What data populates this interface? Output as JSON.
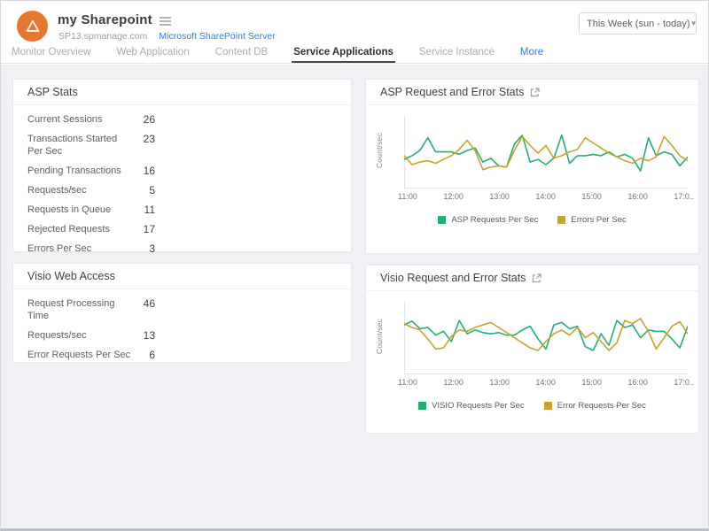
{
  "header": {
    "title": "my Sharepoint",
    "host": "SP13.spmanage.com",
    "type_link": "Microsoft SharePoint Server",
    "period_selector": "This Week (sun - today)"
  },
  "tabs": {
    "items": [
      {
        "label": "Monitor Overview"
      },
      {
        "label": "Web Application"
      },
      {
        "label": "Content DB"
      },
      {
        "label": "Service Applications"
      },
      {
        "label": "Service Instance"
      },
      {
        "label": "More"
      }
    ],
    "active": "Service Applications"
  },
  "panels": {
    "asp_stats": {
      "title": "ASP Stats",
      "rows": [
        {
          "label": "Current Sessions",
          "value": "26"
        },
        {
          "label": "Transactions Started Per Sec",
          "value": "23"
        },
        {
          "label": "Pending Transactions",
          "value": "16"
        },
        {
          "label": "Requests/sec",
          "value": "5"
        },
        {
          "label": "Requests in Queue",
          "value": "11"
        },
        {
          "label": "Rejected Requests",
          "value": "17"
        },
        {
          "label": "Errors Per Sec",
          "value": "3"
        }
      ]
    },
    "visio_web_access": {
      "title": "Visio Web Access",
      "rows": [
        {
          "label": "Request Processing Time",
          "value": "46"
        },
        {
          "label": "Requests/sec",
          "value": "13"
        },
        {
          "label": "Error Requests Per Sec",
          "value": "6"
        }
      ]
    }
  },
  "chart_data": [
    {
      "type": "line",
      "title": "ASP Request and Error Stats",
      "ylabel": "Count/sec",
      "x_ticks": [
        "11:00",
        "12:00",
        "13:00",
        "14:00",
        "15:00",
        "16:00",
        "17:0.."
      ],
      "x_range": [
        "11:00",
        "17:05"
      ],
      "ylim": [
        0,
        10
      ],
      "grid": false,
      "legend_position": "bottom",
      "series": [
        {
          "name": "ASP Requests Per Sec",
          "color": "#23b173",
          "values": [
            4.0,
            4.6,
            5.4,
            7.4,
            5.2,
            5.2,
            5.2,
            4.8,
            5.4,
            5.8,
            3.6,
            4.2,
            3.0,
            2.8,
            6.4,
            7.8,
            3.6,
            4.0,
            3.2,
            4.2,
            7.8,
            3.4,
            4.6,
            4.6,
            4.8,
            4.6,
            5.2,
            4.4,
            4.8,
            4.2,
            2.2,
            7.4,
            4.6,
            5.2,
            4.8,
            3.0,
            4.4
          ]
        },
        {
          "name": "Errors Per Sec",
          "color": "#c7a42a",
          "values": [
            4.6,
            3.2,
            3.6,
            3.8,
            3.4,
            4.0,
            4.6,
            5.6,
            7.0,
            5.4,
            2.4,
            2.8,
            3.0,
            2.8,
            5.4,
            7.6,
            6.2,
            5.0,
            6.2,
            4.2,
            4.6,
            5.2,
            5.6,
            7.4,
            6.6,
            5.8,
            5.0,
            4.4,
            3.8,
            3.4,
            4.2,
            3.8,
            4.4,
            7.6,
            6.2,
            4.6,
            3.8
          ]
        }
      ]
    },
    {
      "type": "line",
      "title": "Visio Request and Error Stats",
      "ylabel": "Count/sec",
      "x_ticks": [
        "11:00",
        "12:00",
        "13:00",
        "14:00",
        "15:00",
        "16:00",
        "17:0.."
      ],
      "x_range": [
        "11:00",
        "17:05"
      ],
      "ylim": [
        0,
        10
      ],
      "grid": false,
      "legend_position": "bottom",
      "series": [
        {
          "name": "VISIO Requests Per Sec",
          "color": "#23b173",
          "values": [
            7.2,
            7.8,
            6.6,
            6.8,
            5.6,
            6.2,
            4.6,
            7.9,
            5.8,
            6.4,
            6.0,
            5.8,
            6.0,
            5.6,
            5.6,
            6.4,
            7.0,
            5.0,
            3.4,
            7.2,
            7.6,
            6.6,
            7.0,
            3.8,
            3.2,
            5.8,
            4.0,
            7.9,
            6.8,
            7.2,
            5.2,
            6.4,
            6.2,
            6.2,
            5.0,
            3.6,
            7.0
          ]
        },
        {
          "name": "Error Requests Per Sec",
          "color": "#c7a42a",
          "values": [
            7.4,
            6.8,
            6.4,
            5.0,
            3.4,
            3.6,
            5.4,
            6.4,
            6.2,
            6.8,
            7.2,
            7.6,
            6.8,
            6.0,
            5.2,
            4.4,
            3.6,
            3.2,
            4.6,
            5.8,
            6.4,
            5.6,
            6.8,
            5.2,
            6.0,
            4.6,
            3.2,
            4.4,
            7.9,
            7.4,
            8.2,
            6.2,
            3.4,
            5.2,
            7.0,
            7.7,
            5.8
          ]
        }
      ]
    }
  ],
  "colors": {
    "brand_orange": "#e8772e",
    "link_blue": "#2d7fd9",
    "series_green": "#23b173",
    "series_yellow": "#c7a42a",
    "background_gray": "#eff1f4"
  }
}
